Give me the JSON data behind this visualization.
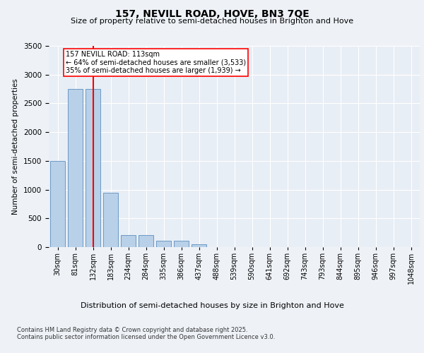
{
  "title1": "157, NEVILL ROAD, HOVE, BN3 7QE",
  "title2": "Size of property relative to semi-detached houses in Brighton and Hove",
  "xlabel": "Distribution of semi-detached houses by size in Brighton and Hove",
  "ylabel": "Number of semi-detached properties",
  "categories": [
    "30sqm",
    "81sqm",
    "132sqm",
    "183sqm",
    "234sqm",
    "284sqm",
    "335sqm",
    "386sqm",
    "437sqm",
    "488sqm",
    "539sqm",
    "590sqm",
    "641sqm",
    "692sqm",
    "743sqm",
    "793sqm",
    "844sqm",
    "895sqm",
    "946sqm",
    "997sqm",
    "1048sqm"
  ],
  "values": [
    1500,
    2750,
    2750,
    950,
    210,
    210,
    110,
    110,
    55,
    0,
    0,
    0,
    0,
    0,
    0,
    0,
    0,
    0,
    0,
    0,
    0
  ],
  "bar_color": "#b8d0e8",
  "bar_edge_color": "#5a8fc0",
  "red_line_x": 2,
  "annotation_title": "157 NEVILL ROAD: 113sqm",
  "annotation_line1": "← 64% of semi-detached houses are smaller (3,533)",
  "annotation_line2": "35% of semi-detached houses are larger (1,939) →",
  "ylim": [
    0,
    3500
  ],
  "yticks": [
    0,
    500,
    1000,
    1500,
    2000,
    2500,
    3000,
    3500
  ],
  "footer1": "Contains HM Land Registry data © Crown copyright and database right 2025.",
  "footer2": "Contains public sector information licensed under the Open Government Licence v3.0.",
  "bg_color": "#eef2f7",
  "plot_bg_color": "#e8eef5"
}
